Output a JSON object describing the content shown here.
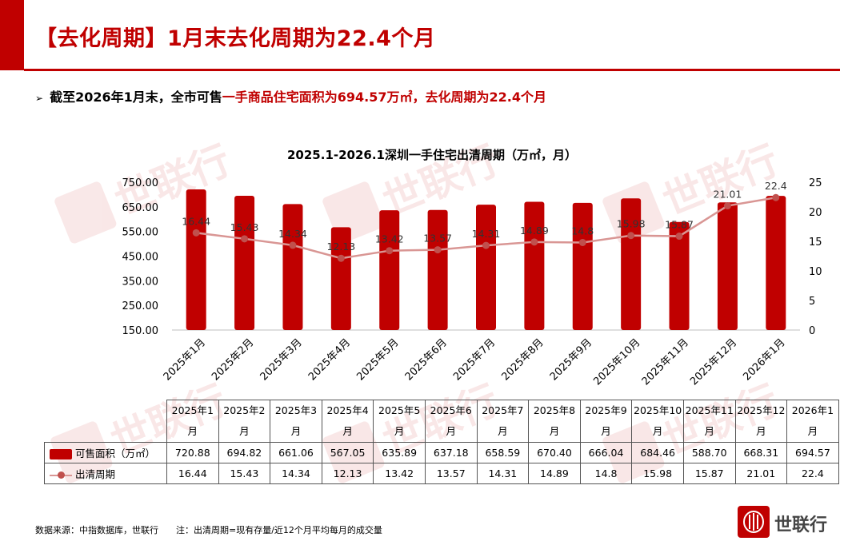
{
  "header": {
    "title": "【去化周期】1月末去化周期为22.4个月",
    "bullet": "➢",
    "subtitle_prefix": "截至2026年1月末，全市可售",
    "subtitle_highlight": "一手商品住宅面积为694.57万㎡",
    "subtitle_suffix": "，去化周期为22.4个月"
  },
  "chart_data": {
    "type": "bar",
    "title": "2025.1-2026.1深圳一手住宅出清周期（万㎡，月）",
    "categories": [
      "2025年1月",
      "2025年2月",
      "2025年3月",
      "2025年4月",
      "2025年5月",
      "2025年6月",
      "2025年7月",
      "2025年8月",
      "2025年9月",
      "2025年10月",
      "2025年11月",
      "2025年12月",
      "2026年1月"
    ],
    "series": [
      {
        "name": "可售面积（万㎡）",
        "type": "bar",
        "axis": "left",
        "color": "#c00000",
        "values": [
          720.88,
          694.82,
          661.06,
          567.05,
          635.89,
          637.18,
          658.59,
          670.4,
          666.04,
          684.46,
          588.7,
          668.31,
          694.57
        ]
      },
      {
        "name": "出清周期",
        "type": "line",
        "axis": "right",
        "color": "#d99694",
        "marker_color": "#c0504d",
        "values": [
          16.44,
          15.43,
          14.34,
          12.13,
          13.42,
          13.57,
          14.31,
          14.89,
          14.8,
          15.98,
          15.87,
          21.01,
          22.4
        ]
      }
    ],
    "left_axis": {
      "min": 150,
      "max": 750,
      "ticks": [
        "750.00",
        "650.00",
        "550.00",
        "450.00",
        "350.00",
        "250.00",
        "150.00"
      ]
    },
    "right_axis": {
      "min": 0,
      "max": 25,
      "ticks": [
        "25",
        "20",
        "15",
        "10",
        "5",
        "0"
      ]
    },
    "bar_labels": [
      "",
      "",
      "",
      "",
      "",
      "",
      "",
      "",
      "",
      "",
      "",
      "",
      ""
    ],
    "line_labels": [
      "16.44",
      "15.43",
      "14.34",
      "12.13",
      "13.42",
      "13.57",
      "14.31",
      "14.89",
      "14.8",
      "15.98",
      "15.87",
      "21.01",
      "22.4"
    ]
  },
  "table": {
    "headers": [
      [
        "2025年1",
        "月"
      ],
      [
        "2025年2",
        "月"
      ],
      [
        "2025年3",
        "月"
      ],
      [
        "2025年4",
        "月"
      ],
      [
        "2025年5",
        "月"
      ],
      [
        "2025年6",
        "月"
      ],
      [
        "2025年7",
        "月"
      ],
      [
        "2025年8",
        "月"
      ],
      [
        "2025年9",
        "月"
      ],
      [
        "2025年10",
        "月"
      ],
      [
        "2025年11",
        "月"
      ],
      [
        "2025年12",
        "月"
      ],
      [
        "2026年1",
        "月"
      ]
    ],
    "rows": [
      {
        "label": "可售面积（万㎡）",
        "legend": "bar",
        "values": [
          "720.88",
          "694.82",
          "661.06",
          "567.05",
          "635.89",
          "637.18",
          "658.59",
          "670.40",
          "666.04",
          "684.46",
          "588.70",
          "668.31",
          "694.57"
        ]
      },
      {
        "label": "出清周期",
        "legend": "line",
        "values": [
          "16.44",
          "15.43",
          "14.34",
          "12.13",
          "13.42",
          "13.57",
          "14.31",
          "14.89",
          "14.8",
          "15.98",
          "15.87",
          "21.01",
          "22.4"
        ]
      }
    ]
  },
  "footer": {
    "source": "数据来源：中指数据库，世联行",
    "note": "注：出清周期=现有存量/近12个月平均每月的成交量"
  },
  "brand": {
    "name": "世联行",
    "watermark": "世联行",
    "accent": "#c00000"
  }
}
